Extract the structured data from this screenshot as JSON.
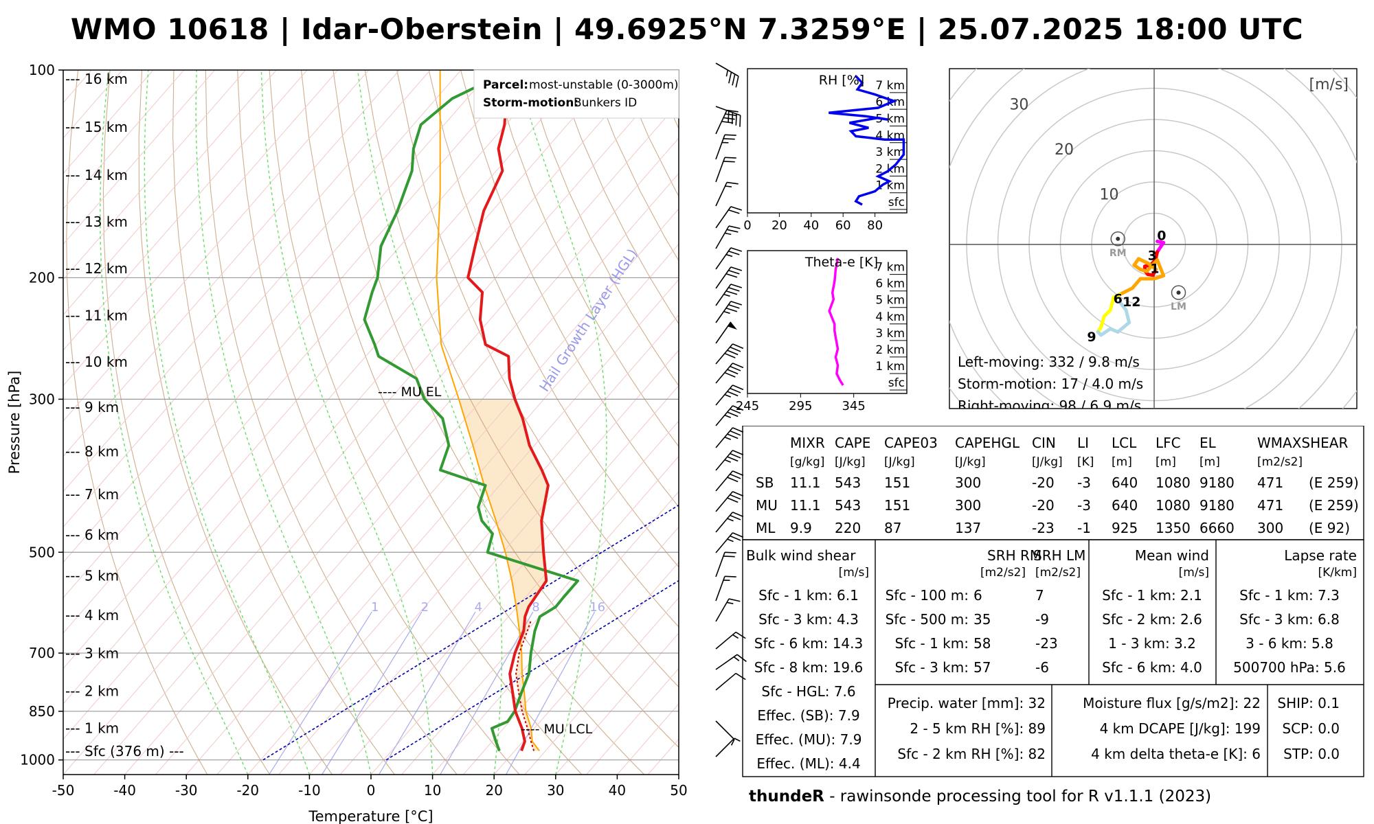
{
  "title": "WMO 10618 | Idar-Oberstein | 49.6925°N 7.3259°E | 25.07.2025 18:00 UTC",
  "footer": {
    "bold": "thundeR",
    "rest": " - rawinsonde processing tool for R v1.1.1 (2023)"
  },
  "colors": {
    "temperature": "#e31a1c",
    "dewpoint": "#339933",
    "parcel": "#ffa500",
    "virtual": "#cc0000",
    "rh": "#0000ee",
    "thetae": "#ff00ff",
    "hgl": "#0000aa"
  },
  "chart_data": [
    {
      "type": "line",
      "name": "skew-T log-P diagram",
      "xlabel": "Temperature [°C]",
      "ylabel": "Pressure [hPa]",
      "xlim": [
        -50,
        50
      ],
      "ylim": [
        1050,
        100
      ],
      "xticks": [
        -50,
        -40,
        -30,
        -20,
        -10,
        0,
        10,
        20,
        30,
        40,
        50
      ],
      "yticks": [
        100,
        200,
        300,
        500,
        700,
        850,
        1000
      ],
      "height_labels": [
        {
          "label": "--- 16 km",
          "p": 103
        },
        {
          "label": "--- 15 km",
          "p": 121
        },
        {
          "label": "--- 14 km",
          "p": 142
        },
        {
          "label": "--- 13 km",
          "p": 166
        },
        {
          "label": "--- 12 km",
          "p": 194
        },
        {
          "label": "--- 11 km",
          "p": 227
        },
        {
          "label": "--- 10 km",
          "p": 265
        },
        {
          "label": "--- 9 km",
          "p": 308
        },
        {
          "label": "--- 8 km",
          "p": 357
        },
        {
          "label": "--- 7 km",
          "p": 412
        },
        {
          "label": "--- 6 km",
          "p": 472
        },
        {
          "label": "--- 5 km",
          "p": 541
        },
        {
          "label": "--- 4 km",
          "p": 617
        },
        {
          "label": "--- 3 km",
          "p": 701
        },
        {
          "label": "--- 2 km",
          "p": 795
        },
        {
          "label": "--- 1 km",
          "p": 899
        },
        {
          "label": "--- Sfc (376 m) ---",
          "p": 971
        }
      ],
      "mixing_ratio_labels": [
        "1",
        "2",
        "4",
        "8",
        "16"
      ],
      "hgl_label": "Hail Growth Layer (HGL)",
      "annotations": {
        "mu_el": "---- MU EL",
        "mu_lcl": "---- MU LCL"
      },
      "legend": {
        "parcel_key": "Parcel:",
        "parcel_val": "most-unstable (0-3000m)",
        "storm_key": "Storm-motion:",
        "storm_val": "Bunkers ID"
      },
      "temperature": {
        "p": [
          970,
          940,
          900,
          850,
          800,
          750,
          700,
          650,
          620,
          600,
          550,
          500,
          450,
          400,
          380,
          350,
          320,
          300,
          280,
          260,
          250,
          230,
          210,
          200,
          180,
          160,
          140,
          130,
          120,
          110,
          100
        ],
        "t": [
          21.1,
          20.3,
          18.0,
          14.5,
          11.5,
          8.3,
          6.2,
          4.5,
          2.7,
          1.9,
          1.1,
          -3.4,
          -8.2,
          -12.1,
          -15.3,
          -20.8,
          -25.7,
          -29.7,
          -33.5,
          -36.8,
          -42.2,
          -46.6,
          -50.1,
          -54.5,
          -57.8,
          -61.4,
          -64.0,
          -67.8,
          -70.2,
          -73.6,
          -71.0
        ]
      },
      "dewpoint": {
        "p": [
          970,
          940,
          900,
          880,
          850,
          800,
          750,
          700,
          650,
          620,
          600,
          580,
          550,
          500,
          470,
          450,
          430,
          400,
          380,
          350,
          320,
          300,
          280,
          260,
          250,
          230,
          210,
          200,
          180,
          160,
          140,
          130,
          120,
          110,
          100
        ],
        "t": [
          17.5,
          15.6,
          13.1,
          14.7,
          14.4,
          12.9,
          11.4,
          8.8,
          6.3,
          5.1,
          6.3,
          6.2,
          6.2,
          -12.5,
          -14.3,
          -17.9,
          -20.4,
          -22.3,
          -31.8,
          -33.9,
          -38.7,
          -44.4,
          -48.6,
          -57.9,
          -60.2,
          -65.4,
          -68.0,
          -69.2,
          -73.1,
          -75.4,
          -78.7,
          -81.6,
          -83.8,
          -82.4,
          -76.9
        ]
      },
      "parcel": {
        "p": [
          970,
          940,
          900,
          850,
          800,
          750,
          700,
          650,
          600,
          550,
          500,
          450,
          400,
          350,
          300,
          250,
          200,
          150,
          100
        ],
        "t": [
          24.0,
          21.5,
          19.5,
          16.2,
          13.4,
          10.3,
          7.3,
          3.8,
          -0.1,
          -4.5,
          -9.6,
          -15.6,
          -22.5,
          -30.0,
          -38.8,
          -49.4,
          -59.6,
          -71.2,
          -88.4
        ]
      },
      "virtual_temperature": {
        "p": [
          970,
          940,
          900,
          850,
          800,
          750,
          700,
          650,
          630
        ],
        "t": [
          23.1,
          21.3,
          18.9,
          15.6,
          12.5,
          9.3,
          6.9,
          5.1,
          4.3
        ]
      },
      "hgl_lines": [
        {
          "p": [
            1000,
            100
          ],
          "t": [
            -19.6,
            65.7
          ]
        },
        {
          "p": [
            1000,
            100
          ],
          "t": [
            0.4,
            85.7
          ]
        }
      ]
    },
    {
      "type": "line",
      "name": "RH profile",
      "title": "RH [%]",
      "xlim": [
        0,
        100
      ],
      "xticks": [
        0,
        20,
        40,
        60,
        80
      ],
      "height_labels": [
        "7 km",
        "6 km",
        "5 km",
        "4 km",
        "3 km",
        "2 km",
        "1 km",
        "sfc"
      ],
      "points": [
        {
          "rh": 72,
          "z": 0
        },
        {
          "rh": 68,
          "z": 0.2
        },
        {
          "rh": 70,
          "z": 0.5
        },
        {
          "rh": 80,
          "z": 0.8
        },
        {
          "rh": 85,
          "z": 1.2
        },
        {
          "rh": 89,
          "z": 1.4
        },
        {
          "rh": 82,
          "z": 1.7
        },
        {
          "rh": 88,
          "z": 2.0
        },
        {
          "rh": 93,
          "z": 2.4
        },
        {
          "rh": 98,
          "z": 3.0
        },
        {
          "rh": 98,
          "z": 3.9
        },
        {
          "rh": 86,
          "z": 3.9
        },
        {
          "rh": 68,
          "z": 4.1
        },
        {
          "rh": 65,
          "z": 4.4
        },
        {
          "rh": 76,
          "z": 4.6
        },
        {
          "rh": 64,
          "z": 4.9
        },
        {
          "rh": 82,
          "z": 5.2
        },
        {
          "rh": 88,
          "z": 5.1
        },
        {
          "rh": 74,
          "z": 5.3
        },
        {
          "rh": 51,
          "z": 5.5
        },
        {
          "rh": 82,
          "z": 5.8
        },
        {
          "rh": 92,
          "z": 6.2
        },
        {
          "rh": 80,
          "z": 6.6
        },
        {
          "rh": 69,
          "z": 6.9
        },
        {
          "rh": 72,
          "z": 7.3
        },
        {
          "rh": 68,
          "z": 7.7
        }
      ]
    },
    {
      "type": "line",
      "name": "Theta-e profile",
      "title": "Theta-e [K]",
      "xlim": [
        245,
        395
      ],
      "xticks": [
        245,
        295,
        345
      ],
      "height_labels": [
        "7 km",
        "6 km",
        "5 km",
        "4 km",
        "3 km",
        "2 km",
        "1 km",
        "sfc"
      ],
      "points": [
        {
          "th": 335,
          "z": 0
        },
        {
          "th": 332,
          "z": 0.3
        },
        {
          "th": 329,
          "z": 0.7
        },
        {
          "th": 330,
          "z": 1.2
        },
        {
          "th": 328,
          "z": 1.7
        },
        {
          "th": 330,
          "z": 2.2
        },
        {
          "th": 328,
          "z": 2.9
        },
        {
          "th": 327,
          "z": 3.3
        },
        {
          "th": 327,
          "z": 3.7
        },
        {
          "th": 322,
          "z": 4.5
        },
        {
          "th": 326,
          "z": 5.2
        },
        {
          "th": 325,
          "z": 5.6
        },
        {
          "th": 327,
          "z": 6.3
        },
        {
          "th": 328,
          "z": 7.0
        },
        {
          "th": 330,
          "z": 7.7
        }
      ]
    },
    {
      "type": "scatter",
      "name": "hodograph",
      "unit": "[m/s]",
      "rings": [
        10,
        20,
        30,
        40
      ],
      "range": [
        -25,
        25
      ],
      "points": [
        {
          "u": 0.5,
          "v": 0.5,
          "c": "#ff00ff"
        },
        {
          "u": 1.5,
          "v": 0.3,
          "c": "#ff00ff"
        },
        {
          "u": 0.5,
          "v": -1.2,
          "c": "#ff00ff"
        },
        {
          "u": 0.2,
          "v": -2.5,
          "c": "#ff0000"
        },
        {
          "u": -0.6,
          "v": -3.3,
          "c": "#ff0000"
        },
        {
          "u": -1.5,
          "v": -3.5,
          "c": "#ff0000"
        },
        {
          "u": -1.5,
          "v": -4.2,
          "c": "#ff0000"
        },
        {
          "u": -1.0,
          "v": -4.8,
          "c": "#ff0000"
        },
        {
          "u": -0.2,
          "v": -4.9,
          "c": "#ff0000"
        },
        {
          "u": 0.3,
          "v": -4.0,
          "c": "#ff0000"
        },
        {
          "u": -1.0,
          "v": -3.0,
          "c": "#ffa500"
        },
        {
          "u": -2.5,
          "v": -2.3,
          "c": "#ffa500"
        },
        {
          "u": -3.2,
          "v": -3.3,
          "c": "#ffa500"
        },
        {
          "u": -2.2,
          "v": -4.0,
          "c": "#ffa500"
        },
        {
          "u": -1.2,
          "v": -4.3,
          "c": "#ffa500"
        },
        {
          "u": 0.5,
          "v": -2.5,
          "c": "#ffa500"
        },
        {
          "u": 1.5,
          "v": -5.0,
          "c": "#ffa500"
        },
        {
          "u": 0.0,
          "v": -5.5,
          "c": "#ffa500"
        },
        {
          "u": -2.2,
          "v": -5.5,
          "c": "#ffa500"
        },
        {
          "u": -3.5,
          "v": -7.0,
          "c": "#ffa500"
        },
        {
          "u": -5.5,
          "v": -8.0,
          "c": "#ffa500"
        },
        {
          "u": -6.5,
          "v": -8.5,
          "c": "#ffff00"
        },
        {
          "u": -7.0,
          "v": -10.5,
          "c": "#ffff00"
        },
        {
          "u": -8.0,
          "v": -11.5,
          "c": "#ffff00"
        },
        {
          "u": -8.5,
          "v": -13.2,
          "c": "#ffff00"
        },
        {
          "u": -9.0,
          "v": -14.0,
          "c": "#ffff00"
        },
        {
          "u": -8.5,
          "v": -14.5,
          "c": "#add8e6"
        },
        {
          "u": -7.0,
          "v": -13.5,
          "c": "#add8e6"
        },
        {
          "u": -5.8,
          "v": -14.0,
          "c": "#add8e6"
        },
        {
          "u": -4.0,
          "v": -12.5,
          "c": "#add8e6"
        },
        {
          "u": -4.5,
          "v": -10.5,
          "c": "#add8e6"
        },
        {
          "u": -5.5,
          "v": -9.2,
          "c": "#add8e6"
        }
      ],
      "height_marks": [
        {
          "label": "0",
          "u": 1.2,
          "v": 1.5
        },
        {
          "label": "1",
          "u": 0.1,
          "v": -3.8
        },
        {
          "label": "3",
          "u": -0.3,
          "v": -1.7
        },
        {
          "label": "6",
          "u": -5.8,
          "v": -8.6
        },
        {
          "label": "12",
          "u": -3.6,
          "v": -9.1
        },
        {
          "label": "9",
          "u": -10.0,
          "v": -14.7
        }
      ],
      "storm_markers": [
        {
          "label": "RM",
          "u": -5.8,
          "v": 0.9
        },
        {
          "label": "LM",
          "u": 3.9,
          "v": -7.7
        }
      ],
      "lines": [
        "Left-moving: 332 / 9.8 m/s",
        "Storm-motion: 17 / 4.0 m/s",
        "Right-moving: 98 / 6.9 m/s"
      ]
    }
  ],
  "wind_barbs": [
    {
      "y": 92,
      "dir": 300,
      "kt": 35
    },
    {
      "y": 155,
      "dir": 290,
      "kt": 40
    },
    {
      "y": 195,
      "dir": 205,
      "kt": 40
    },
    {
      "y": 232,
      "dir": 200,
      "kt": 25
    },
    {
      "y": 265,
      "dir": 200,
      "kt": 20
    },
    {
      "y": 300,
      "dir": 205,
      "kt": 15
    },
    {
      "y": 332,
      "dir": 215,
      "kt": 20
    },
    {
      "y": 362,
      "dir": 210,
      "kt": 25
    },
    {
      "y": 392,
      "dir": 215,
      "kt": 25
    },
    {
      "y": 420,
      "dir": 215,
      "kt": 30
    },
    {
      "y": 445,
      "dir": 215,
      "kt": 35
    },
    {
      "y": 470,
      "dir": 215,
      "kt": 35
    },
    {
      "y": 500,
      "dir": 215,
      "kt": 50
    },
    {
      "y": 530,
      "dir": 220,
      "kt": 40
    },
    {
      "y": 558,
      "dir": 220,
      "kt": 40
    },
    {
      "y": 590,
      "dir": 220,
      "kt": 35
    },
    {
      "y": 620,
      "dir": 220,
      "kt": 35
    },
    {
      "y": 652,
      "dir": 220,
      "kt": 35
    },
    {
      "y": 685,
      "dir": 220,
      "kt": 35
    },
    {
      "y": 715,
      "dir": 220,
      "kt": 30
    },
    {
      "y": 745,
      "dir": 220,
      "kt": 30
    },
    {
      "y": 775,
      "dir": 220,
      "kt": 25
    },
    {
      "y": 805,
      "dir": 220,
      "kt": 25
    },
    {
      "y": 840,
      "dir": 200,
      "kt": 20
    },
    {
      "y": 875,
      "dir": 200,
      "kt": 15
    },
    {
      "y": 905,
      "dir": 210,
      "kt": 15
    },
    {
      "y": 945,
      "dir": 230,
      "kt": 15
    },
    {
      "y": 975,
      "dir": 235,
      "kt": 15
    },
    {
      "y": 1005,
      "dir": 230,
      "kt": 10
    },
    {
      "y": 1050,
      "dir": 315,
      "kt": 5
    },
    {
      "y": 1102,
      "dir": 225,
      "kt": 5
    }
  ],
  "params_table": {
    "headers": [
      "MIXR",
      "CAPE",
      "CAPE03",
      "CAPEHGL",
      "CIN",
      "LI",
      "LCL",
      "LFC",
      "EL",
      "WMAXSHEAR"
    ],
    "units": [
      "[g/kg]",
      "[J/kg]",
      "[J/kg]",
      "[J/kg]",
      "[J/kg]",
      "[K]",
      "[m]",
      "[m]",
      "[m]",
      "[m2/s2]"
    ],
    "rows": [
      {
        "label": "SB",
        "values": [
          "11.1",
          "543",
          "151",
          "300",
          "-20",
          "-3",
          "640",
          "1080",
          "9180",
          "471",
          "(E 259)"
        ]
      },
      {
        "label": "MU",
        "values": [
          "11.1",
          "543",
          "151",
          "300",
          "-20",
          "-3",
          "640",
          "1080",
          "9180",
          "471",
          "(E 259)"
        ]
      },
      {
        "label": "ML",
        "values": [
          "9.9",
          "220",
          "87",
          "137",
          "-23",
          "-1",
          "925",
          "1350",
          "6660",
          "300",
          "(E 92)"
        ]
      }
    ]
  },
  "bulk_shear": {
    "title": "Bulk wind shear",
    "unit": "[m/s]",
    "rows": [
      "Sfc - 1 km: 6.1",
      "Sfc - 3 km: 4.3",
      "Sfc - 6 km: 14.3",
      "Sfc - 8 km: 19.6",
      "Sfc - HGL: 7.6",
      "Effec. (SB): 7.9",
      "Effec. (MU): 7.9",
      "Effec. (ML): 4.4"
    ]
  },
  "srh": {
    "h1": "SRH RM",
    "h2": "SRH LM",
    "u1": "[m2/s2]",
    "u2": "[m2/s2]",
    "rows": [
      {
        "label": "Sfc - 100 m:",
        "rm": "6",
        "lm": "7"
      },
      {
        "label": "Sfc - 500 m:",
        "rm": "35",
        "lm": "-9"
      },
      {
        "label": "Sfc - 1 km:",
        "rm": "58",
        "lm": "-23"
      },
      {
        "label": "Sfc - 3 km:",
        "rm": "57",
        "lm": "-6"
      }
    ]
  },
  "mean_wind": {
    "title": "Mean wind",
    "unit": "[m/s]",
    "rows": [
      "Sfc - 1 km: 2.1",
      "Sfc - 2 km: 2.6",
      "1 - 3 km: 3.2",
      "Sfc - 6 km: 4.0"
    ]
  },
  "lapse_rate": {
    "title": "Lapse rate",
    "unit": "[K/km]",
    "rows": [
      "Sfc - 1 km: 7.3",
      "Sfc - 3 km: 6.8",
      "3 - 6 km: 5.8",
      "500700 hPa: 5.6"
    ]
  },
  "moisture": {
    "rows": [
      "Precip. water [mm]: 32",
      "2 - 5 km RH [%]: 89",
      "Sfc - 2 km RH [%]: 82"
    ]
  },
  "flux": {
    "rows": [
      "Moisture flux [g/s/m2]: 22",
      "4 km DCAPE [J/kg]: 199",
      "4 km delta theta-e [K]: 6"
    ]
  },
  "indices": {
    "rows": [
      "SHIP: 0.1",
      "SCP: 0.0",
      "STP: 0.0"
    ]
  }
}
